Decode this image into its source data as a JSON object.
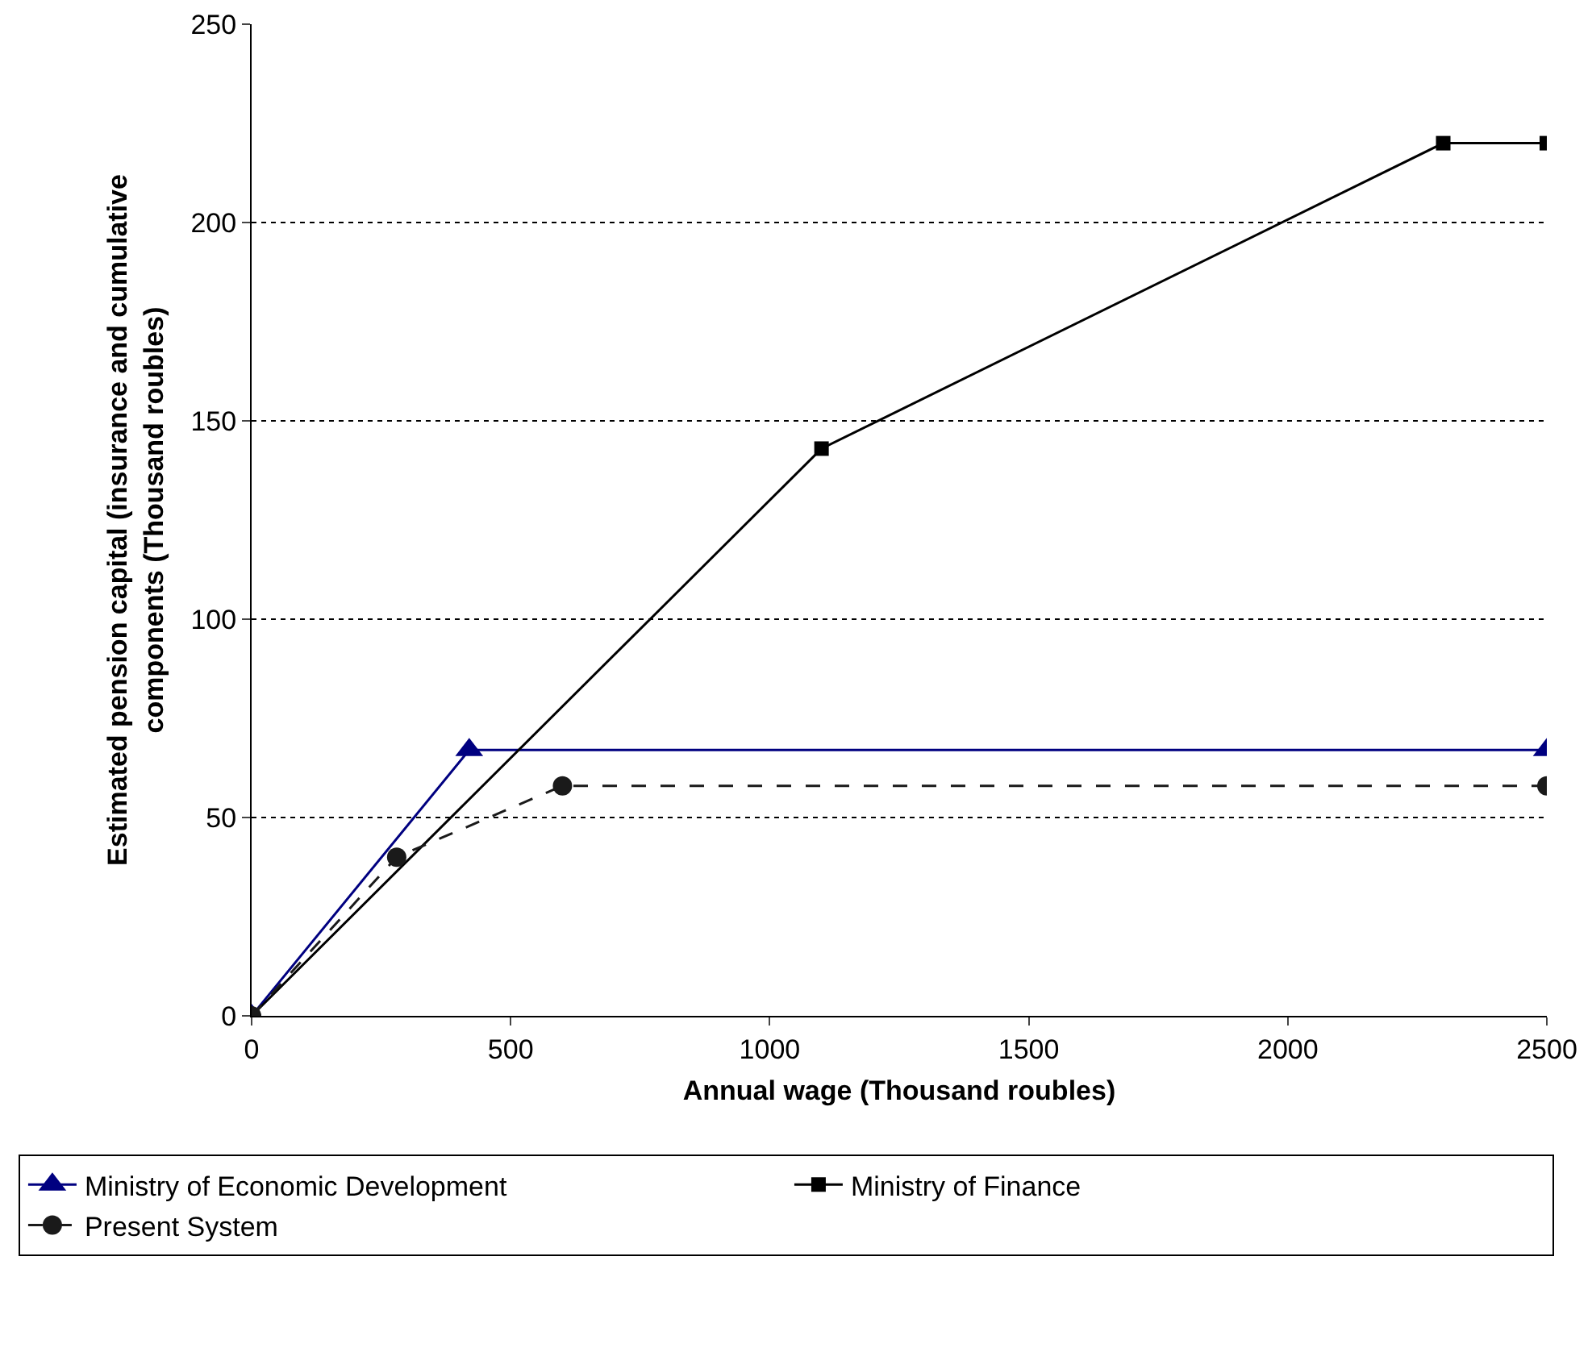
{
  "chart_data": {
    "type": "line",
    "xlabel": "Annual wage (Thousand roubles)",
    "ylabel": "Estimated pension capital (insurance and cumulative components (Thousand roubles)",
    "xlim": [
      0,
      2500
    ],
    "xticks": [
      0,
      500,
      1000,
      1500,
      2000,
      2500
    ],
    "ylim": [
      0,
      250
    ],
    "yticks": [
      0,
      50,
      100,
      150,
      200,
      250
    ],
    "grid": "y",
    "legend": "bottom",
    "series": [
      {
        "name": "Ministry of Economic Development",
        "color": "#000080",
        "x": [
          0,
          420,
          2500
        ],
        "values": [
          0,
          67,
          67
        ],
        "marker": "triangle",
        "line_style": "solid"
      },
      {
        "name": "Ministry of Finance",
        "color": "#000000",
        "x": [
          0,
          1100,
          2300,
          2500
        ],
        "values": [
          0,
          143,
          220,
          220
        ],
        "marker": "square",
        "line_style": "solid"
      },
      {
        "name": "Present System",
        "color": "#1a1a1a",
        "x": [
          0,
          280,
          600,
          2500
        ],
        "values": [
          0,
          40,
          58,
          58
        ],
        "marker": "circle",
        "line_style": "dashed"
      }
    ]
  }
}
